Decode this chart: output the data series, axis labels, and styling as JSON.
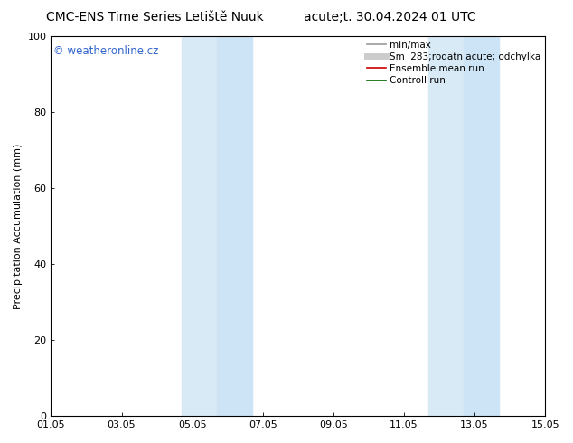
{
  "title_left": "CMC-ENS Time Series Letiště Nuuk",
  "title_right": "acute;t. 30.04.2024 01 UTC",
  "ylabel": "Precipitation Accumulation (mm)",
  "ylim": [
    0,
    100
  ],
  "xlim": [
    0,
    14
  ],
  "xtick_positions": [
    0,
    2,
    4,
    6,
    8,
    10,
    12,
    14
  ],
  "xtick_labels": [
    "01.05",
    "03.05",
    "05.05",
    "07.05",
    "09.05",
    "11.05",
    "13.05",
    "15.05"
  ],
  "ytick_positions": [
    0,
    20,
    40,
    60,
    80,
    100
  ],
  "ytick_labels": [
    "0",
    "20",
    "40",
    "60",
    "80",
    "100"
  ],
  "shaded_regions": [
    {
      "x_start": 3.7,
      "x_end": 4.7,
      "color": "#d9eaf7",
      "alpha": 1.0
    },
    {
      "x_start": 4.7,
      "x_end": 5.7,
      "color": "#cce4f5",
      "alpha": 1.0
    },
    {
      "x_start": 10.7,
      "x_end": 11.7,
      "color": "#d9eaf7",
      "alpha": 1.0
    },
    {
      "x_start": 11.7,
      "x_end": 12.7,
      "color": "#cce4f5",
      "alpha": 1.0
    }
  ],
  "watermark_text": "© weatheronline.cz",
  "watermark_color": "#3366cc",
  "watermark_fontsize": 8.5,
  "legend_entries": [
    {
      "label": "min/max",
      "color": "#999999",
      "lw": 1.2,
      "linestyle": "-",
      "type": "line"
    },
    {
      "label": "Sm  283;rodatn acute; odchylka",
      "color": "#cccccc",
      "lw": 5,
      "linestyle": "-",
      "type": "line"
    },
    {
      "label": "Ensemble mean run",
      "color": "#cc0000",
      "lw": 1.2,
      "linestyle": "-",
      "type": "line"
    },
    {
      "label": "Controll run",
      "color": "#006600",
      "lw": 1.2,
      "linestyle": "-",
      "type": "line"
    }
  ],
  "background_color": "#ffffff",
  "title_fontsize": 10,
  "axis_fontsize": 8,
  "ylabel_fontsize": 8,
  "legend_fontsize": 7.5
}
